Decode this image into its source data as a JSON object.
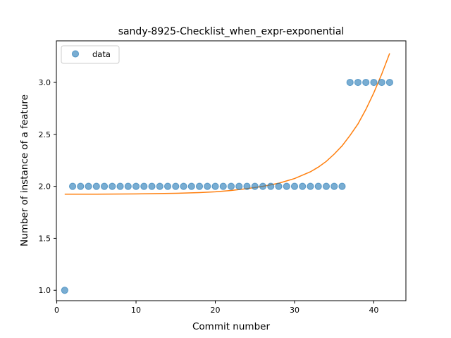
{
  "chart_data": {
    "type": "scatter",
    "title": "sandy-8925-Checklist_when_expr-exponential",
    "xlabel": "Commit number",
    "ylabel": "Number of instance of a feature",
    "xlim": [
      -0.05,
      44.05
    ],
    "ylim": [
      0.9,
      3.4
    ],
    "xticks": [
      0,
      10,
      20,
      30,
      40
    ],
    "yticks": [
      1.0,
      1.5,
      2.0,
      2.5,
      3.0
    ],
    "xtick_labels": [
      "0",
      "10",
      "20",
      "30",
      "40"
    ],
    "ytick_labels": [
      "1.0",
      "1.5",
      "2.0",
      "2.5",
      "3.0"
    ],
    "legend": {
      "placement": "top-left",
      "entries": [
        "data"
      ]
    },
    "grid": false,
    "series": [
      {
        "name": "data",
        "kind": "points",
        "color": "#1f77b4",
        "x": [
          1,
          2,
          3,
          4,
          5,
          6,
          7,
          8,
          9,
          10,
          11,
          12,
          13,
          14,
          15,
          16,
          17,
          18,
          19,
          20,
          21,
          22,
          23,
          24,
          25,
          26,
          27,
          28,
          29,
          30,
          31,
          32,
          33,
          34,
          35,
          36,
          37,
          38,
          39,
          40,
          41,
          42
        ],
        "y": [
          1,
          2,
          2,
          2,
          2,
          2,
          2,
          2,
          2,
          2,
          2,
          2,
          2,
          2,
          2,
          2,
          2,
          2,
          2,
          2,
          2,
          2,
          2,
          2,
          2,
          2,
          2,
          2,
          2,
          2,
          2,
          2,
          2,
          2,
          2,
          2,
          3,
          3,
          3,
          3,
          3,
          3
        ]
      },
      {
        "kind": "line",
        "color": "#ff7f0e",
        "x": [
          1,
          5,
          10,
          15,
          18,
          20,
          22,
          24,
          26,
          28,
          30,
          32,
          33,
          34,
          35,
          36,
          37,
          38,
          39,
          40,
          41,
          42
        ],
        "y": [
          1.925,
          1.925,
          1.927,
          1.933,
          1.94,
          1.948,
          1.96,
          1.978,
          2.0,
          2.03,
          2.075,
          2.14,
          2.185,
          2.24,
          2.31,
          2.39,
          2.49,
          2.6,
          2.74,
          2.9,
          3.08,
          3.28
        ]
      }
    ]
  }
}
